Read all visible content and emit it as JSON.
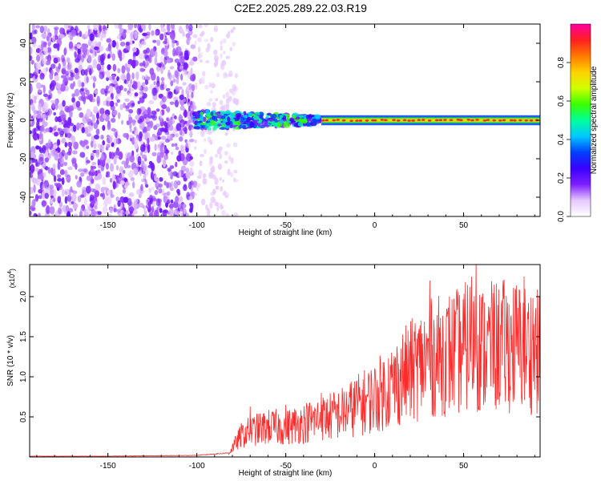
{
  "figure": {
    "title": "C2E2.2025.289.22.03.R19"
  },
  "chart_data": [
    {
      "type": "heatmap",
      "title": "",
      "xlabel": "Height of straight line (km)",
      "ylabel": "Frequency (Hz)",
      "xlim": [
        -194,
        93
      ],
      "ylim": [
        -50,
        50
      ],
      "x_ticks": [
        -150,
        -100,
        -50,
        0,
        50
      ],
      "x_tick_labels": [
        "-150",
        "-100",
        "-50",
        "0",
        "50"
      ],
      "y_ticks": [
        -40,
        -20,
        0,
        20,
        40
      ],
      "y_tick_labels": [
        "-40",
        "-20",
        "0",
        "20",
        "40"
      ],
      "colorbar": {
        "label": "Normalized spectral amplitude",
        "range": [
          0.0,
          1.0
        ],
        "ticks": [
          0.0,
          0.2,
          0.4,
          0.6,
          0.8
        ],
        "tick_labels": [
          "0.0",
          "0.2",
          "0.4",
          "0.6",
          "0.8"
        ],
        "colors": [
          "#ffffff",
          "#e6c8ff",
          "#7d1fff",
          "#3a00ff",
          "#0040ff",
          "#00c8ff",
          "#00ff9c",
          "#39ff00",
          "#cfff00",
          "#ffd200",
          "#ff7a00",
          "#ff2020",
          "#ff00a0"
        ]
      },
      "regions": [
        {
          "x_range": [
            -194,
            -101
          ],
          "description": "broadband noise",
          "amplitude": 0.15
        },
        {
          "x_range": [
            -101,
            -30
          ],
          "center_hz": 0,
          "half_width_hz": 5,
          "amplitude": 0.45
        },
        {
          "x_range": [
            -30,
            93
          ],
          "center_hz": 0,
          "half_width_hz": 1.5,
          "amplitude": 0.9
        }
      ]
    },
    {
      "type": "line",
      "title": "",
      "xlabel": "Height of straight line (km)",
      "ylabel": "SNR (10 * v/v)",
      "y_multiplier": "(x10",
      "y_multiplier_exp": "4",
      "y_multiplier_close": ")",
      "xlim": [
        -194,
        93
      ],
      "ylim": [
        0,
        24000
      ],
      "x_ticks": [
        -150,
        -100,
        -50,
        0,
        50
      ],
      "x_tick_labels": [
        "-150",
        "-100",
        "-50",
        "0",
        "50"
      ],
      "y_ticks": [
        5000,
        10000,
        15000,
        20000
      ],
      "y_tick_labels": [
        "0.5",
        "1.0",
        "1.5",
        "2.0"
      ],
      "series": [
        {
          "name": "SNR",
          "color": "#ff2a2a",
          "x": [
            -194,
            -150,
            -100,
            -82,
            -75,
            -70,
            -60,
            -50,
            -40,
            -30,
            -20,
            -10,
            0,
            10,
            20,
            30,
            40,
            50,
            55,
            60,
            70,
            80,
            90,
            93
          ],
          "values": [
            100,
            100,
            200,
            500,
            2500,
            3000,
            3500,
            3500,
            4000,
            4500,
            5000,
            6000,
            7000,
            8500,
            10000,
            11500,
            12000,
            12500,
            14000,
            12500,
            13000,
            13000,
            12500,
            12000
          ],
          "peaks": {
            "x": [
              -70,
              -50,
              -30,
              -10,
              10,
              25,
              31,
              42,
              57,
              66,
              84,
              89,
              93
            ],
            "values": [
              6300,
              6500,
              8000,
              9500,
              11500,
              16000,
              22000,
              20000,
              24500,
              19800,
              22500,
              19800,
              17800
            ]
          }
        }
      ]
    }
  ]
}
